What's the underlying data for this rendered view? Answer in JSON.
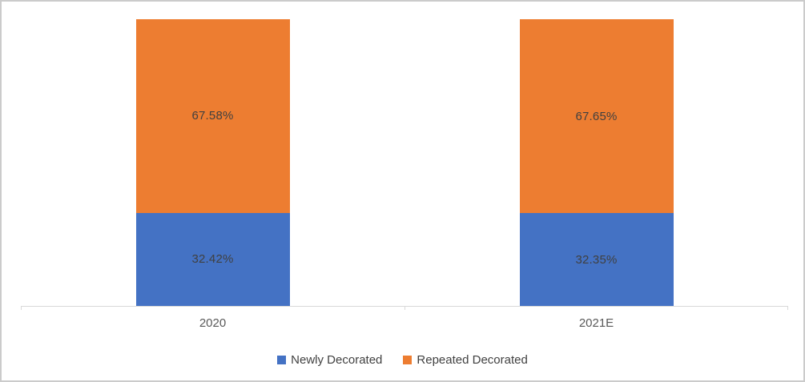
{
  "chart_data": {
    "type": "bar",
    "subtype": "stacked-100-percent-column",
    "categories": [
      "2020",
      "2021E"
    ],
    "series": [
      {
        "name": "Newly Decorated",
        "color": "#4472C4",
        "values": [
          32.42,
          32.35
        ],
        "data_labels": [
          "32.42%",
          "32.35%"
        ]
      },
      {
        "name": "Repeated Decorated",
        "color": "#ED7D31",
        "values": [
          67.58,
          67.65
        ],
        "data_labels": [
          "67.58%",
          "67.65%"
        ]
      }
    ],
    "ylim": [
      0,
      100
    ],
    "grid": false,
    "legend_position": "bottom"
  },
  "colors": {
    "axis_line": "#D9D9D9",
    "chart_border": "#CBCBCB",
    "data_label_text": "#404040",
    "axis_label_text": "#595959",
    "legend_text": "#404040"
  }
}
